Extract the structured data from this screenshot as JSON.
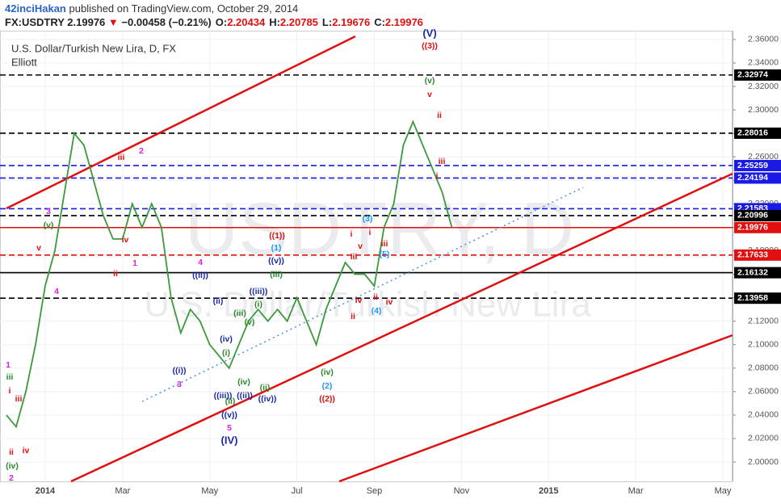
{
  "header": {
    "author": "42inciHakan",
    "published": "published on TradingView.com, October 29, 2014",
    "quote": {
      "symbol": "FX:USDTRY",
      "last": 2.19976,
      "arrow": "▼",
      "change": "−0.00458 (−0.21%)",
      "ohlc": [
        {
          "label": "O:",
          "value": 2.20434
        },
        {
          "label": "H:",
          "value": 2.20785
        },
        {
          "label": "L:",
          "value": 2.19676
        },
        {
          "label": "C:",
          "value": 2.19976
        }
      ]
    }
  },
  "chart_data": {
    "type": "line",
    "title": "U.S. Dollar/Turkish New Lira, D, FX",
    "subtitle": "Elliott",
    "watermark": "USDTRY, D",
    "watermark_sub": "U.S. Dollar/Turkish New Lira",
    "color": "#3a9a3a",
    "grid": true,
    "categories": [
      null,
      null,
      null,
      null,
      "2014",
      null,
      null,
      null,
      null,
      null,
      null,
      null,
      "Mar",
      null,
      null,
      null,
      null,
      null,
      null,
      null,
      null,
      "May",
      null,
      null,
      null,
      null,
      null,
      null,
      null,
      null,
      "Jul",
      null,
      null,
      null,
      null,
      null,
      null,
      null,
      "Sep",
      null,
      null,
      null,
      null,
      null,
      null,
      null,
      null,
      "Nov",
      null,
      null,
      null,
      null,
      null,
      null,
      null,
      null,
      "2015",
      null,
      null,
      null,
      null,
      null,
      null,
      null,
      null,
      "Mar",
      null,
      null,
      null,
      null,
      null,
      null,
      null,
      null,
      "May"
    ],
    "values": [
      2.04,
      2.03,
      2.06,
      2.1,
      2.15,
      2.18,
      2.23,
      2.28,
      2.27,
      2.24,
      2.21,
      2.19,
      2.19,
      2.22,
      2.2,
      2.22,
      2.2,
      2.14,
      2.11,
      2.13,
      2.12,
      2.1,
      2.09,
      2.08,
      2.1,
      2.12,
      2.13,
      2.12,
      2.13,
      2.12,
      2.14,
      2.12,
      2.1,
      2.13,
      2.15,
      2.17,
      2.16,
      2.16,
      2.15,
      2.2,
      2.22,
      2.27,
      2.29,
      2.27,
      2.25,
      2.23,
      2.2,
      null,
      null,
      null,
      null,
      null,
      null,
      null,
      null,
      null,
      null,
      null,
      null,
      null,
      null,
      null,
      null,
      null,
      null,
      null,
      null,
      null,
      null,
      null,
      null,
      null,
      null,
      null,
      null
    ],
    "ylim": [
      1.9835,
      2.3675
    ],
    "yticks": [
      {
        "value": 2.0,
        "label": "2.00000"
      },
      {
        "value": 2.02,
        "label": "2.02000"
      },
      {
        "value": 2.04,
        "label": "2.04000"
      },
      {
        "value": 2.06,
        "label": "2.06000"
      },
      {
        "value": 2.08,
        "label": "2.08000"
      },
      {
        "value": 2.1,
        "label": "2.10000"
      },
      {
        "value": 2.12,
        "label": "2.12000"
      },
      {
        "value": 2.14,
        "label": "2.14000"
      },
      {
        "value": 2.16,
        "label": "2.16000"
      },
      {
        "value": 2.18,
        "label": "2.18000"
      },
      {
        "value": 2.2,
        "label": "2.20000"
      },
      {
        "value": 2.22,
        "label": "2.22000"
      },
      {
        "value": 2.24,
        "label": "2.24000"
      },
      {
        "value": 2.26,
        "label": "2.26000"
      },
      {
        "value": 2.28,
        "label": "2.28000"
      },
      {
        "value": 2.3,
        "label": "2.30000"
      },
      {
        "value": 2.32,
        "label": "2.32000"
      },
      {
        "value": 2.34,
        "label": "2.34000"
      },
      {
        "value": 2.36,
        "label": "2.36000"
      }
    ],
    "levels": [
      {
        "value": 2.32974,
        "color": "#000000",
        "dashed": true
      },
      {
        "value": 2.28016,
        "color": "#000000",
        "dashed": true
      },
      {
        "value": 2.25259,
        "color": "#1a1ae6",
        "dashed": true
      },
      {
        "value": 2.24194,
        "color": "#1a1ae6",
        "dashed": true
      },
      {
        "value": 2.21583,
        "color": "#1a1ae6",
        "dashed": true
      },
      {
        "value": 2.20996,
        "color": "#000000",
        "dashed": true
      },
      {
        "value": 2.19976,
        "color": "#e01010",
        "dashed": false
      },
      {
        "value": 2.17633,
        "color": "#e01010",
        "dashed": true
      },
      {
        "value": 2.16132,
        "color": "#000000",
        "dashed": false
      },
      {
        "value": 2.13958,
        "color": "#000000",
        "dashed": true
      }
    ],
    "annotations": [
      {
        "text": "(V)",
        "color": "#1a2aa8"
      },
      {
        "text": "((3))",
        "color": "#e01010"
      },
      {
        "text": "(v)",
        "color": "#2a8a2a"
      },
      {
        "text": "v",
        "color": "#e01010"
      },
      {
        "text": "ii",
        "color": "#e01010"
      },
      {
        "text": "iii",
        "color": "#e01010"
      },
      {
        "text": "i",
        "color": "#e01010"
      },
      {
        "text": "((1))",
        "color": "#e01010"
      },
      {
        "text": "(1)",
        "color": "#2196f3"
      },
      {
        "text": "((v))",
        "color": "#1a2aa8"
      },
      {
        "text": "(iii)",
        "color": "#2a8a2a"
      },
      {
        "text": "((2))",
        "color": "#e01010"
      },
      {
        "text": "(2)",
        "color": "#2196f3"
      },
      {
        "text": "(iv)",
        "color": "#2a8a2a"
      },
      {
        "text": "(3)",
        "color": "#2196f3"
      },
      {
        "text": "(4)",
        "color": "#2196f3"
      },
      {
        "text": "(5)",
        "color": "#2196f3"
      },
      {
        "text": "(IV)",
        "color": "#1a2aa8"
      },
      {
        "text": "5",
        "color": "#e020e0"
      },
      {
        "text": "((v))",
        "color": "#1a2aa8"
      },
      {
        "text": "((i))",
        "color": "#1a2aa8"
      },
      {
        "text": "3",
        "color": "#e020e0"
      },
      {
        "text": "((ii))",
        "color": "#1a2aa8"
      },
      {
        "text": "4",
        "color": "#e020e0"
      },
      {
        "text": "2",
        "color": "#e020e0"
      },
      {
        "text": "1",
        "color": "#e020e0"
      },
      {
        "text": "iii",
        "color": "#e01010"
      },
      {
        "text": "iv",
        "color": "#e01010"
      },
      {
        "text": "ii",
        "color": "#e01010"
      },
      {
        "text": "3",
        "color": "#e020e0"
      },
      {
        "text": "(v)",
        "color": "#2a8a2a"
      },
      {
        "text": "v",
        "color": "#e01010"
      },
      {
        "text": "4",
        "color": "#e020e0"
      },
      {
        "text": "1",
        "color": "#e020e0"
      },
      {
        "text": "iii",
        "color": "#2a8a2a"
      },
      {
        "text": "i",
        "color": "#e01010"
      },
      {
        "text": "iii",
        "color": "#e01010"
      },
      {
        "text": "ii",
        "color": "#e01010"
      },
      {
        "text": "iv",
        "color": "#e01010"
      },
      {
        "text": "(iv)",
        "color": "#2a8a2a"
      },
      {
        "text": "2",
        "color": "#e020e0"
      },
      {
        "text": "((iii))",
        "color": "#1a2aa8"
      },
      {
        "text": "(iv)",
        "color": "#1a2aa8"
      },
      {
        "text": "(i)",
        "color": "#2a8a2a"
      },
      {
        "text": "(iv)",
        "color": "#2a8a2a"
      },
      {
        "text": "((iii))",
        "color": "#1a2aa8"
      },
      {
        "text": "((ii))",
        "color": "#1a2aa8"
      },
      {
        "text": "((iv))",
        "color": "#1a2aa8"
      },
      {
        "text": "(ii)",
        "color": "#2a8a2a"
      },
      {
        "text": "(ii)",
        "color": "#2a8a2a"
      },
      {
        "text": "(ii)",
        "color": "#1a2aa8"
      },
      {
        "text": "(iii)",
        "color": "#2a8a2a"
      },
      {
        "text": "(v)",
        "color": "#2a8a2a"
      },
      {
        "text": "(i)",
        "color": "#2a8a2a"
      },
      {
        "text": "i",
        "color": "#e01010"
      },
      {
        "text": "iii",
        "color": "#e01010"
      },
      {
        "text": "v",
        "color": "#e01010"
      },
      {
        "text": "i",
        "color": "#e01010"
      },
      {
        "text": "iii",
        "color": "#e01010"
      },
      {
        "text": "iv",
        "color": "#e01010"
      },
      {
        "text": "ii",
        "color": "#e01010"
      },
      {
        "text": "ii",
        "color": "#e01010"
      },
      {
        "text": "iv",
        "color": "#e01010"
      }
    ]
  }
}
